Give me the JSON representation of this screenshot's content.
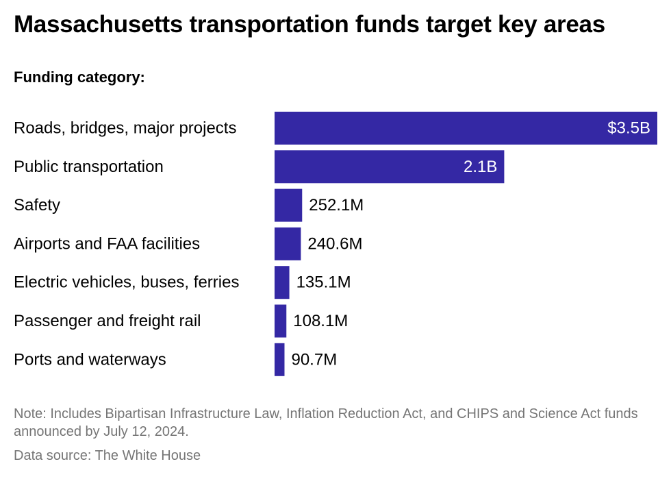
{
  "title": "Massachusetts transportation funds target key areas",
  "subtitle": "Funding category:",
  "note": "Note: Includes Bipartisan Infrastructure Law, Inflation Reduction Act, and CHIPS and Science Act funds announced by July 12, 2024.",
  "source": "Data source: The White House",
  "colors": {
    "bar": "#3428a4",
    "label_inside": "#ffffff",
    "label_outside": "#000000"
  },
  "chart_data": {
    "type": "bar",
    "orientation": "horizontal",
    "title": "Massachusetts transportation funds target key areas",
    "categories": [
      "Roads, bridges, major projects",
      "Public transportation",
      "Safety",
      "Airports and FAA facilities",
      "Electric vehicles, buses, ferries",
      "Passenger and freight rail",
      "Ports and waterways"
    ],
    "values": [
      3500,
      2100,
      252.1,
      240.6,
      135.1,
      108.1,
      90.7
    ],
    "unit": "million USD",
    "data_labels": [
      "$3.5B",
      "2.1B",
      "252.1M",
      "240.6M",
      "135.1M",
      "108.1M",
      "90.7M"
    ],
    "xlim": [
      0,
      3500
    ],
    "grid": false,
    "legend": "none"
  }
}
